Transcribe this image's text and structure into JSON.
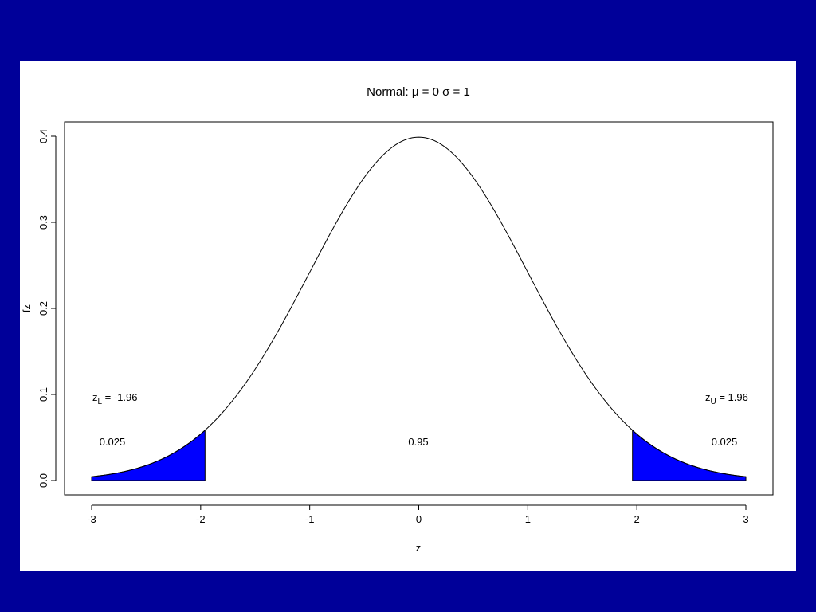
{
  "colors": {
    "background": "#000099",
    "panel": "#ffffff",
    "tail_fill": "#0000ff",
    "curve": "#000000"
  },
  "chart_data": {
    "type": "area",
    "title": {
      "prefix": "Normal: ",
      "mu_symbol": "μ",
      "mu_value": " = 0 ",
      "sigma_symbol": "σ",
      "sigma_value": " = 1"
    },
    "xlabel": "z",
    "ylabel": "fz",
    "xlim": [
      -3,
      3
    ],
    "ylim": [
      0,
      0.4
    ],
    "x_ticks": [
      "-3",
      "-2",
      "-1",
      "0",
      "1",
      "2",
      "3"
    ],
    "y_ticks": [
      "0.0",
      "0.1",
      "0.2",
      "0.3",
      "0.4"
    ],
    "grid": false,
    "legend": "none",
    "curve": {
      "distribution": "normal",
      "mu": 0,
      "sigma": 1,
      "x_range": [
        -3,
        3
      ]
    },
    "shaded_regions": [
      {
        "name": "lower-tail",
        "x_from": -3,
        "x_to": -1.96,
        "area": 0.025
      },
      {
        "name": "upper-tail",
        "x_from": 1.96,
        "x_to": 3,
        "area": 0.025
      }
    ],
    "annotations": {
      "z_lower": {
        "base": "z",
        "sub": "L",
        "rest": " = -1.96"
      },
      "z_upper": {
        "base": "z",
        "sub": "U",
        "rest": " = 1.96"
      },
      "area_left": "0.025",
      "area_center": "0.95",
      "area_right": "0.025"
    }
  }
}
